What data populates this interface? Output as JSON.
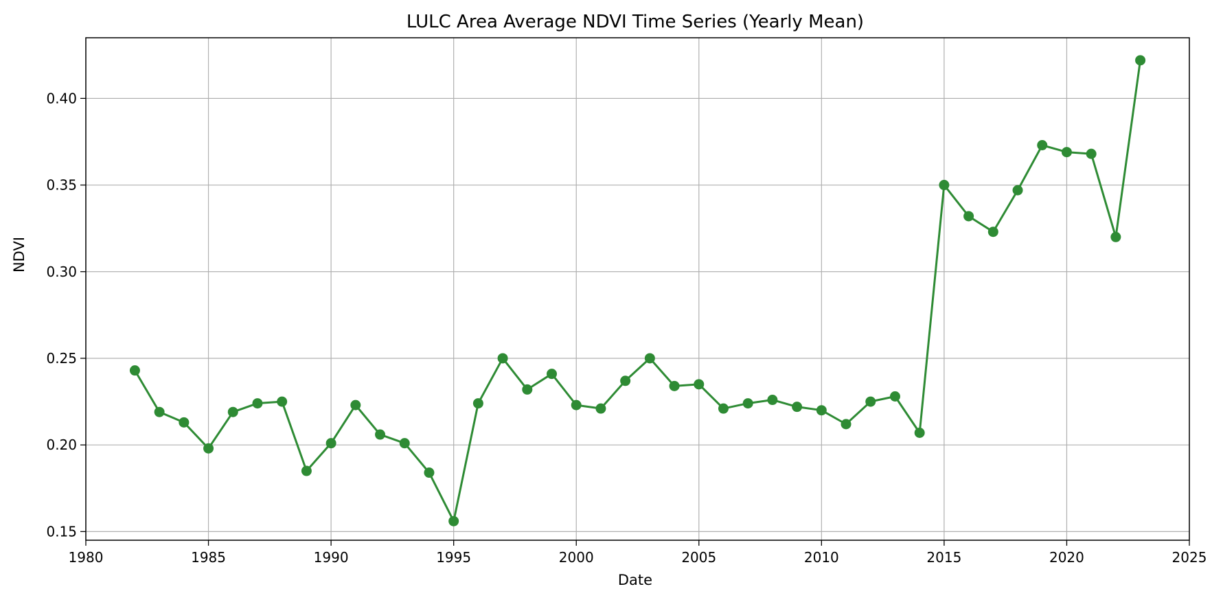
{
  "chart_data": {
    "type": "line",
    "title": "LULC Area Average NDVI Time Series (Yearly Mean)",
    "xlabel": "Date",
    "ylabel": "NDVI",
    "xlim": [
      1980,
      2025
    ],
    "ylim": [
      0.145,
      0.435
    ],
    "x_ticks": [
      "1980",
      "1985",
      "1990",
      "1995",
      "2000",
      "2005",
      "2010",
      "2015",
      "2020",
      "2025"
    ],
    "y_ticks": [
      "0.15",
      "0.20",
      "0.25",
      "0.30",
      "0.35",
      "0.40"
    ],
    "grid": true,
    "line_color": "#2e8b34",
    "marker": "circle",
    "x": [
      1982,
      1983,
      1984,
      1985,
      1986,
      1987,
      1988,
      1989,
      1990,
      1991,
      1992,
      1993,
      1994,
      1995,
      1996,
      1997,
      1998,
      1999,
      2000,
      2001,
      2002,
      2003,
      2004,
      2005,
      2006,
      2007,
      2008,
      2009,
      2010,
      2011,
      2012,
      2013,
      2014,
      2015,
      2016,
      2017,
      2018,
      2019,
      2020,
      2021,
      2022,
      2023
    ],
    "series": [
      {
        "values": [
          0.243,
          0.219,
          0.213,
          0.198,
          0.219,
          0.224,
          0.225,
          0.185,
          0.201,
          0.223,
          0.206,
          0.201,
          0.184,
          0.156,
          0.224,
          0.25,
          0.232,
          0.241,
          0.223,
          0.221,
          0.237,
          0.25,
          0.234,
          0.235,
          0.221,
          0.224,
          0.226,
          0.222,
          0.22,
          0.212,
          0.225,
          0.228,
          0.207,
          0.35,
          0.332,
          0.323,
          0.347,
          0.373,
          0.369,
          0.368,
          0.32,
          0.422
        ]
      }
    ]
  }
}
